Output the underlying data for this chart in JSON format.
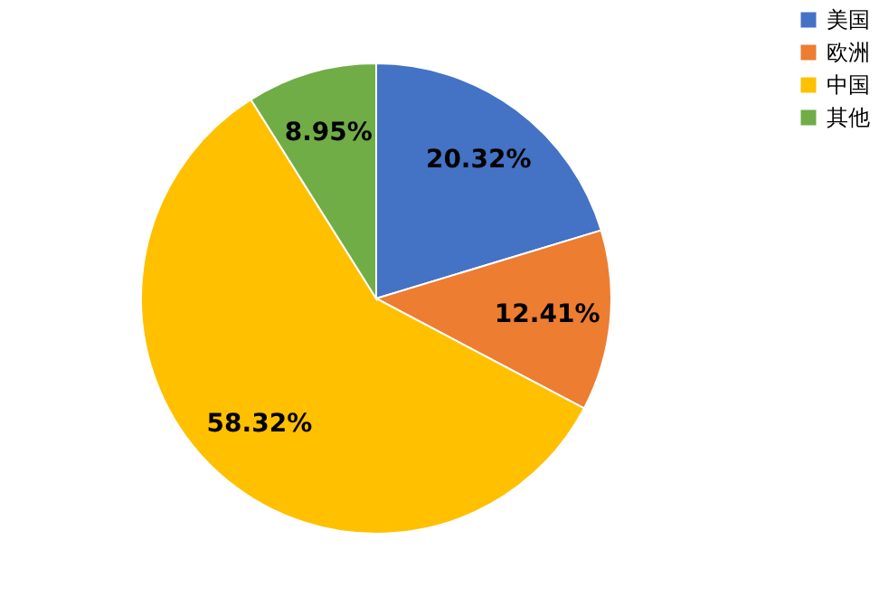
{
  "chart_data": {
    "type": "pie",
    "categories": [
      "美国",
      "欧洲",
      "中国",
      "其他"
    ],
    "values": [
      20.32,
      12.41,
      58.32,
      8.95
    ],
    "colors": [
      "#4472c4",
      "#ed7d31",
      "#ffc000",
      "#70ad47"
    ],
    "value_labels": [
      "20.32%",
      "12.41%",
      "58.32%",
      "8.95%"
    ],
    "legend": "right"
  }
}
